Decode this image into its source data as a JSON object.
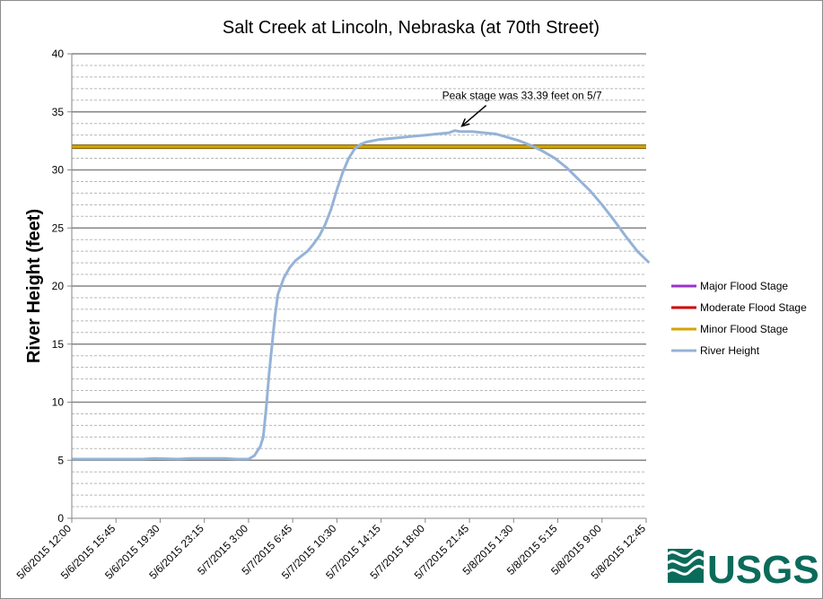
{
  "chart_data": {
    "type": "line",
    "title": "Salt Creek at Lincoln, Nebraska (at 70th Street)",
    "ylabel": "River Height (feet)",
    "xlabel": "",
    "ylim": [
      0,
      40
    ],
    "y_ticks": [
      0,
      5,
      10,
      15,
      20,
      25,
      30,
      35,
      40
    ],
    "grid": {
      "major": true,
      "minor": true
    },
    "x_tick_labels": [
      "5/6/2015 12:00",
      "5/6/2015 15:45",
      "5/6/2015 19:30",
      "5/6/2015 23:15",
      "5/7/2015 3:00",
      "5/7/2015 6:45",
      "5/7/2015 10:30",
      "5/7/2015 14:15",
      "5/7/2015 18:00",
      "5/7/2015 21:45",
      "5/8/2015 1:30",
      "5/8/2015 5:15",
      "5/8/2015 9:00",
      "5/8/2015 12:45"
    ],
    "x_range": [
      "5/6/2015 12:00",
      "5/8/2015 12:45"
    ],
    "thresholds": [
      {
        "name": "Major Flood Stage",
        "color": "#9933cc",
        "value": null
      },
      {
        "name": "Moderate Flood Stage",
        "color": "#cc0000",
        "value": null
      },
      {
        "name": "Minor Flood Stage",
        "color": "#d4a400",
        "value": 32
      }
    ],
    "series": [
      {
        "name": "River Height",
        "color": "#95b3d7",
        "points": [
          [
            "5/6/2015 12:00",
            5.1
          ],
          [
            "5/6/2015 15:00",
            5.1
          ],
          [
            "5/6/2015 18:00",
            5.1
          ],
          [
            "5/6/2015 19:00",
            5.15
          ],
          [
            "5/6/2015 21:00",
            5.1
          ],
          [
            "5/6/2015 22:00",
            5.15
          ],
          [
            "5/7/2015 1:00",
            5.15
          ],
          [
            "5/7/2015 2:00",
            5.1
          ],
          [
            "5/7/2015 3:00",
            5.1
          ],
          [
            "5/7/2015 3:30",
            5.4
          ],
          [
            "5/7/2015 4:00",
            6.2
          ],
          [
            "5/7/2015 4:15",
            7.0
          ],
          [
            "5/7/2015 4:30",
            9.5
          ],
          [
            "5/7/2015 4:45",
            12.5
          ],
          [
            "5/7/2015 5:00",
            15.0
          ],
          [
            "5/7/2015 5:15",
            17.5
          ],
          [
            "5/7/2015 5:30",
            19.3
          ],
          [
            "5/7/2015 5:45",
            20.0
          ],
          [
            "5/7/2015 6:00",
            20.7
          ],
          [
            "5/7/2015 6:30",
            21.6
          ],
          [
            "5/7/2015 7:00",
            22.2
          ],
          [
            "5/7/2015 7:30",
            22.6
          ],
          [
            "5/7/2015 8:00",
            23.0
          ],
          [
            "5/7/2015 8:30",
            23.6
          ],
          [
            "5/7/2015 9:00",
            24.3
          ],
          [
            "5/7/2015 9:30",
            25.3
          ],
          [
            "5/7/2015 10:00",
            26.6
          ],
          [
            "5/7/2015 10:30",
            28.3
          ],
          [
            "5/7/2015 11:00",
            29.8
          ],
          [
            "5/7/2015 11:30",
            31.0
          ],
          [
            "5/7/2015 12:00",
            31.8
          ],
          [
            "5/7/2015 12:30",
            32.2
          ],
          [
            "5/7/2015 13:00",
            32.4
          ],
          [
            "5/7/2015 14:00",
            32.6
          ],
          [
            "5/7/2015 15:00",
            32.7
          ],
          [
            "5/7/2015 16:00",
            32.8
          ],
          [
            "5/7/2015 17:00",
            32.9
          ],
          [
            "5/7/2015 18:00",
            33.0
          ],
          [
            "5/7/2015 19:00",
            33.1
          ],
          [
            "5/7/2015 20:00",
            33.2
          ],
          [
            "5/7/2015 20:30",
            33.39
          ],
          [
            "5/7/2015 21:00",
            33.3
          ],
          [
            "5/7/2015 22:00",
            33.3
          ],
          [
            "5/7/2015 23:00",
            33.2
          ],
          [
            "5/8/2015 0:00",
            33.1
          ],
          [
            "5/8/2015 1:00",
            32.8
          ],
          [
            "5/8/2015 2:00",
            32.5
          ],
          [
            "5/8/2015 3:00",
            32.1
          ],
          [
            "5/8/2015 4:00",
            31.6
          ],
          [
            "5/8/2015 5:00",
            31.0
          ],
          [
            "5/8/2015 6:00",
            30.2
          ],
          [
            "5/8/2015 7:00",
            29.2
          ],
          [
            "5/8/2015 8:00",
            28.2
          ],
          [
            "5/8/2015 9:00",
            27.0
          ],
          [
            "5/8/2015 10:00",
            25.7
          ],
          [
            "5/8/2015 11:00",
            24.3
          ],
          [
            "5/8/2015 12:00",
            23.0
          ],
          [
            "5/8/2015 13:00",
            22.0
          ]
        ]
      }
    ],
    "legend": {
      "placement": "right",
      "entries": [
        {
          "name": "Major Flood Stage",
          "color": "#9933cc"
        },
        {
          "name": "Moderate Flood Stage",
          "color": "#cc0000"
        },
        {
          "name": "Minor Flood Stage",
          "color": "#d4a400"
        },
        {
          "name": "River Height",
          "color": "#95b3d7"
        }
      ]
    },
    "annotation": {
      "text": "Peak stage was 33.39 feet on 5/7",
      "x": "5/7/2015 20:30",
      "y": 33.39
    }
  },
  "logo": {
    "text": "USGS",
    "color": "#0b6b5a"
  }
}
